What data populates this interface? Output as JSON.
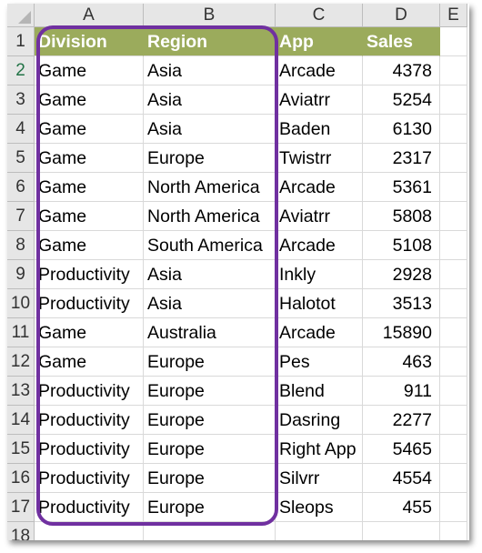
{
  "column_headers": [
    "A",
    "B",
    "C",
    "D",
    "E"
  ],
  "row_numbers": [
    "1",
    "2",
    "3",
    "4",
    "5",
    "6",
    "7",
    "8",
    "9",
    "10",
    "11",
    "12",
    "13",
    "14",
    "15",
    "16",
    "17",
    "18"
  ],
  "header_row": {
    "division": "Division",
    "region": "Region",
    "app": "App",
    "sales": "Sales"
  },
  "rows": [
    {
      "division": "Game",
      "region": "Asia",
      "app": "Arcade",
      "sales": "4378"
    },
    {
      "division": "Game",
      "region": "Asia",
      "app": "Aviatrr",
      "sales": "5254"
    },
    {
      "division": "Game",
      "region": "Asia",
      "app": "Baden",
      "sales": "6130"
    },
    {
      "division": "Game",
      "region": "Europe",
      "app": "Twistrr",
      "sales": "2317"
    },
    {
      "division": "Game",
      "region": "North America",
      "app": "Arcade",
      "sales": "5361"
    },
    {
      "division": "Game",
      "region": "North America",
      "app": "Aviatrr",
      "sales": "5808"
    },
    {
      "division": "Game",
      "region": "South America",
      "app": "Arcade",
      "sales": "5108"
    },
    {
      "division": "Productivity",
      "region": "Asia",
      "app": "Inkly",
      "sales": "2928"
    },
    {
      "division": "Productivity",
      "region": "Asia",
      "app": "Halotot",
      "sales": "3513"
    },
    {
      "division": "Game",
      "region": "Australia",
      "app": "Arcade",
      "sales": "15890"
    },
    {
      "division": "Game",
      "region": "Europe",
      "app": "Pes",
      "sales": "463"
    },
    {
      "division": "Productivity",
      "region": "Europe",
      "app": "Blend",
      "sales": "911"
    },
    {
      "division": "Productivity",
      "region": "Europe",
      "app": "Dasring",
      "sales": "2277"
    },
    {
      "division": "Productivity",
      "region": "Europe",
      "app": "Right App",
      "sales": "5465"
    },
    {
      "division": "Productivity",
      "region": "Europe",
      "app": "Silvrr",
      "sales": "4554"
    },
    {
      "division": "Productivity",
      "region": "Europe",
      "app": "Sleops",
      "sales": "455"
    }
  ],
  "colors": {
    "header_fill": "#9bab5c",
    "highlight_border": "#7030a0",
    "selected_row_number": "#217346"
  }
}
